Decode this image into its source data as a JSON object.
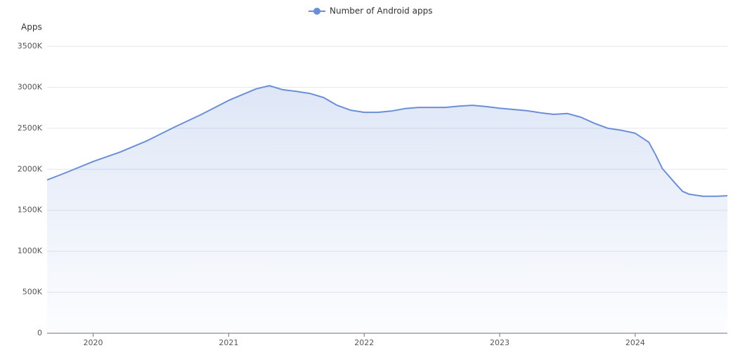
{
  "chart_data": {
    "type": "area",
    "legend_position": "top",
    "y_label": "Apps",
    "x": [
      2019.66,
      2019.8,
      2020.0,
      2020.2,
      2020.4,
      2020.6,
      2020.8,
      2021.0,
      2021.2,
      2021.3,
      2021.4,
      2021.5,
      2021.6,
      2021.7,
      2021.8,
      2021.9,
      2022.0,
      2022.1,
      2022.2,
      2022.3,
      2022.4,
      2022.5,
      2022.6,
      2022.7,
      2022.8,
      2022.9,
      2023.0,
      2023.1,
      2023.2,
      2023.3,
      2023.4,
      2023.5,
      2023.6,
      2023.7,
      2023.8,
      2023.9,
      2024.0,
      2024.1,
      2024.15,
      2024.2,
      2024.3,
      2024.35,
      2024.4,
      2024.5,
      2024.6,
      2024.68
    ],
    "series": [
      {
        "name": "Number of Android apps",
        "color": "#6a8fd8",
        "values": [
          1870000,
          1960000,
          2095000,
          2210000,
          2350000,
          2515000,
          2670000,
          2840000,
          2980000,
          3020000,
          2970000,
          2950000,
          2925000,
          2875000,
          2780000,
          2720000,
          2695000,
          2695000,
          2710000,
          2740000,
          2755000,
          2755000,
          2755000,
          2770000,
          2780000,
          2765000,
          2745000,
          2730000,
          2715000,
          2690000,
          2670000,
          2680000,
          2635000,
          2560000,
          2500000,
          2475000,
          2440000,
          2330000,
          2180000,
          2010000,
          1820000,
          1730000,
          1695000,
          1670000,
          1670000,
          1677000
        ]
      }
    ],
    "xlim": [
      2019.66,
      2024.68
    ],
    "xticks": [
      2020,
      2021,
      2022,
      2023,
      2024
    ],
    "ylim": [
      0,
      3500000
    ],
    "yticks": [
      0,
      {
        "value": 500000,
        "label": "500K"
      },
      {
        "value": 1000000,
        "label": "1000K"
      },
      {
        "value": 1500000,
        "label": "1500K"
      },
      {
        "value": 2000000,
        "label": "2000K"
      },
      {
        "value": 2500000,
        "label": "2500K"
      },
      {
        "value": 3000000,
        "label": "3000K"
      },
      {
        "value": 3500000,
        "label": "3500K"
      }
    ],
    "grid": true
  }
}
